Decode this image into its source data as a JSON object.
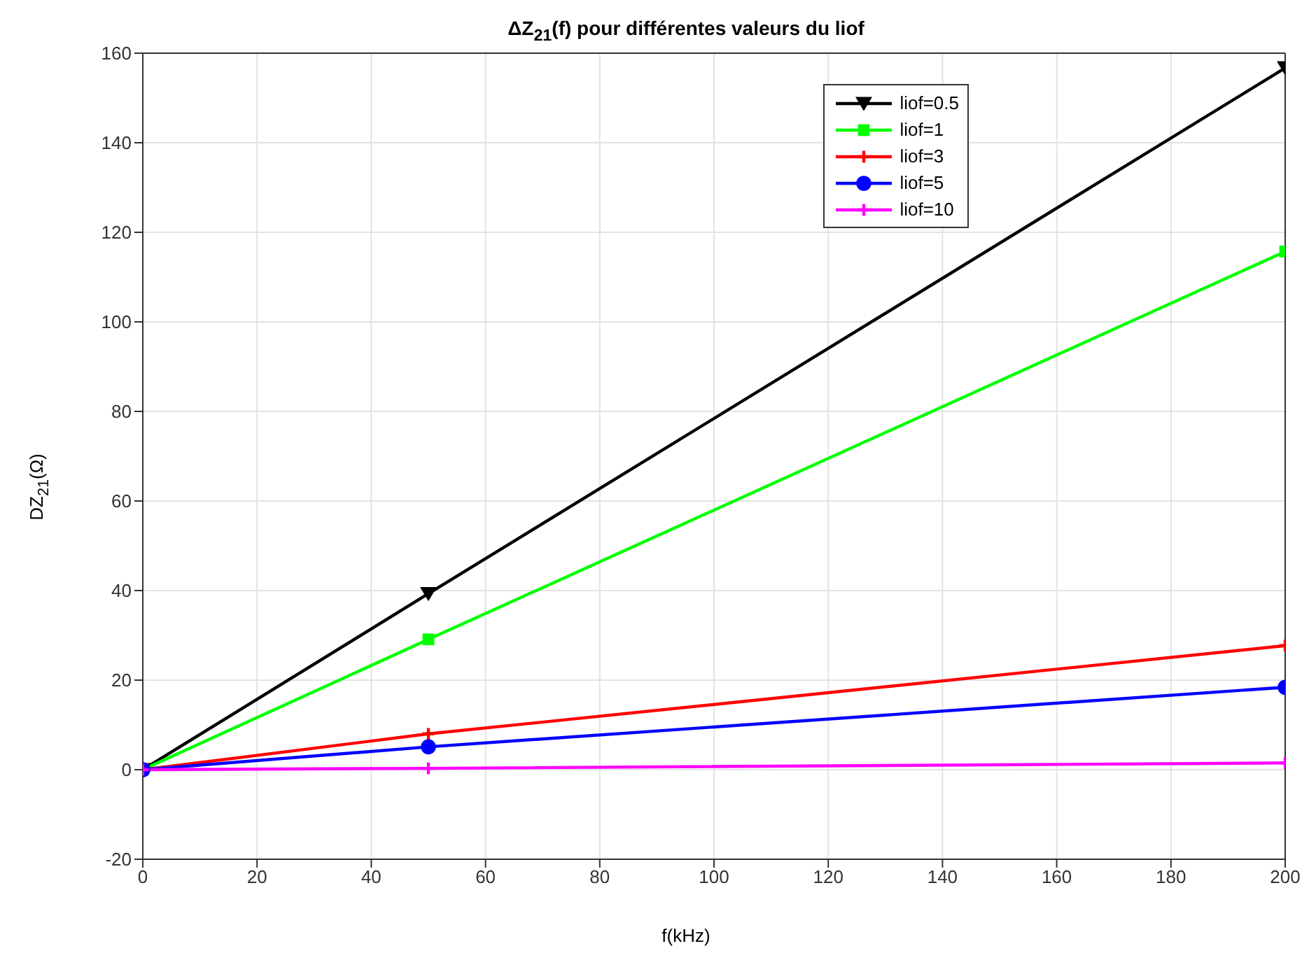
{
  "chart_data": {
    "type": "line",
    "title": "ΔZ$_{21}$(f) pour différentes valeurs du liof",
    "xlabel": "f(kHz)",
    "ylabel": "DZ$_{21}$(Ω)",
    "x": [
      0,
      50,
      200
    ],
    "series": [
      {
        "name": "liof=0.5",
        "color": "#000000",
        "marker": "triangle",
        "values": [
          0,
          39.3,
          156.7
        ]
      },
      {
        "name": "liof=1",
        "color": "#00ff00",
        "marker": "square",
        "values": [
          0,
          29.1,
          115.7
        ]
      },
      {
        "name": "liof=3",
        "color": "#ff0000",
        "marker": "cross",
        "values": [
          0,
          8.0,
          27.7
        ]
      },
      {
        "name": "liof=5",
        "color": "#0000ff",
        "marker": "circle",
        "values": [
          0,
          5.1,
          18.4
        ]
      },
      {
        "name": "liof=10",
        "color": "#ff00ff",
        "marker": "cross",
        "values": [
          0,
          0.3,
          1.5
        ]
      }
    ],
    "xlim": [
      0,
      200
    ],
    "xticks": [
      0,
      20,
      40,
      60,
      80,
      100,
      120,
      140,
      160,
      180,
      200
    ],
    "ylim": [
      -20,
      160
    ],
    "yticks": [
      -20,
      0,
      20,
      40,
      60,
      80,
      100,
      120,
      140,
      160
    ],
    "grid": true,
    "legend": "top right",
    "line_style": "solid"
  }
}
